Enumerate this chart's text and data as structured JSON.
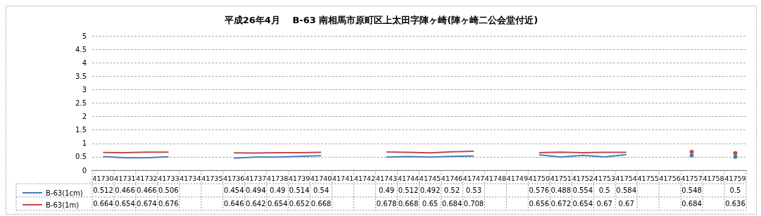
{
  "chart_data": {
    "type": "line",
    "title": "平成26年4月　 B-63 南相馬市原町区上太田字陣ヶ崎(陣ヶ崎二公会堂付近)",
    "categories": [
      "41730",
      "41731",
      "41732",
      "41733",
      "41734",
      "41735",
      "41736",
      "41737",
      "41738",
      "41739",
      "41740",
      "41741",
      "41742",
      "41743",
      "41744",
      "41745",
      "41746",
      "41747",
      "41748",
      "41749",
      "41750",
      "41751",
      "41752",
      "41753",
      "41754",
      "41755",
      "41756",
      "41757",
      "41758",
      "41759"
    ],
    "series": [
      {
        "name": "B-63(1cm)",
        "color": "#4a7ebb",
        "values": [
          0.512,
          0.466,
          0.466,
          0.506,
          null,
          null,
          0.454,
          0.494,
          0.49,
          0.514,
          0.54,
          null,
          null,
          0.49,
          0.512,
          0.492,
          0.52,
          0.53,
          null,
          null,
          0.576,
          0.488,
          0.554,
          0.5,
          0.584,
          null,
          null,
          0.548,
          null,
          0.5
        ]
      },
      {
        "name": "B-63(1m)",
        "color": "#be4b48",
        "values": [
          0.664,
          0.654,
          0.674,
          0.676,
          null,
          null,
          0.646,
          0.642,
          0.654,
          0.652,
          0.668,
          null,
          null,
          0.678,
          0.668,
          0.65,
          0.684,
          0.708,
          null,
          null,
          0.656,
          0.672,
          0.654,
          0.67,
          0.67,
          null,
          null,
          0.684,
          null,
          0.636
        ]
      }
    ],
    "ylim": [
      0,
      5
    ],
    "yticks": [
      0,
      0.5,
      1,
      1.5,
      2,
      2.5,
      3,
      3.5,
      4,
      4.5,
      5
    ],
    "grid": "y",
    "legend": "bottom left",
    "marker": "none",
    "line_style": "solid",
    "data_labels": true
  }
}
